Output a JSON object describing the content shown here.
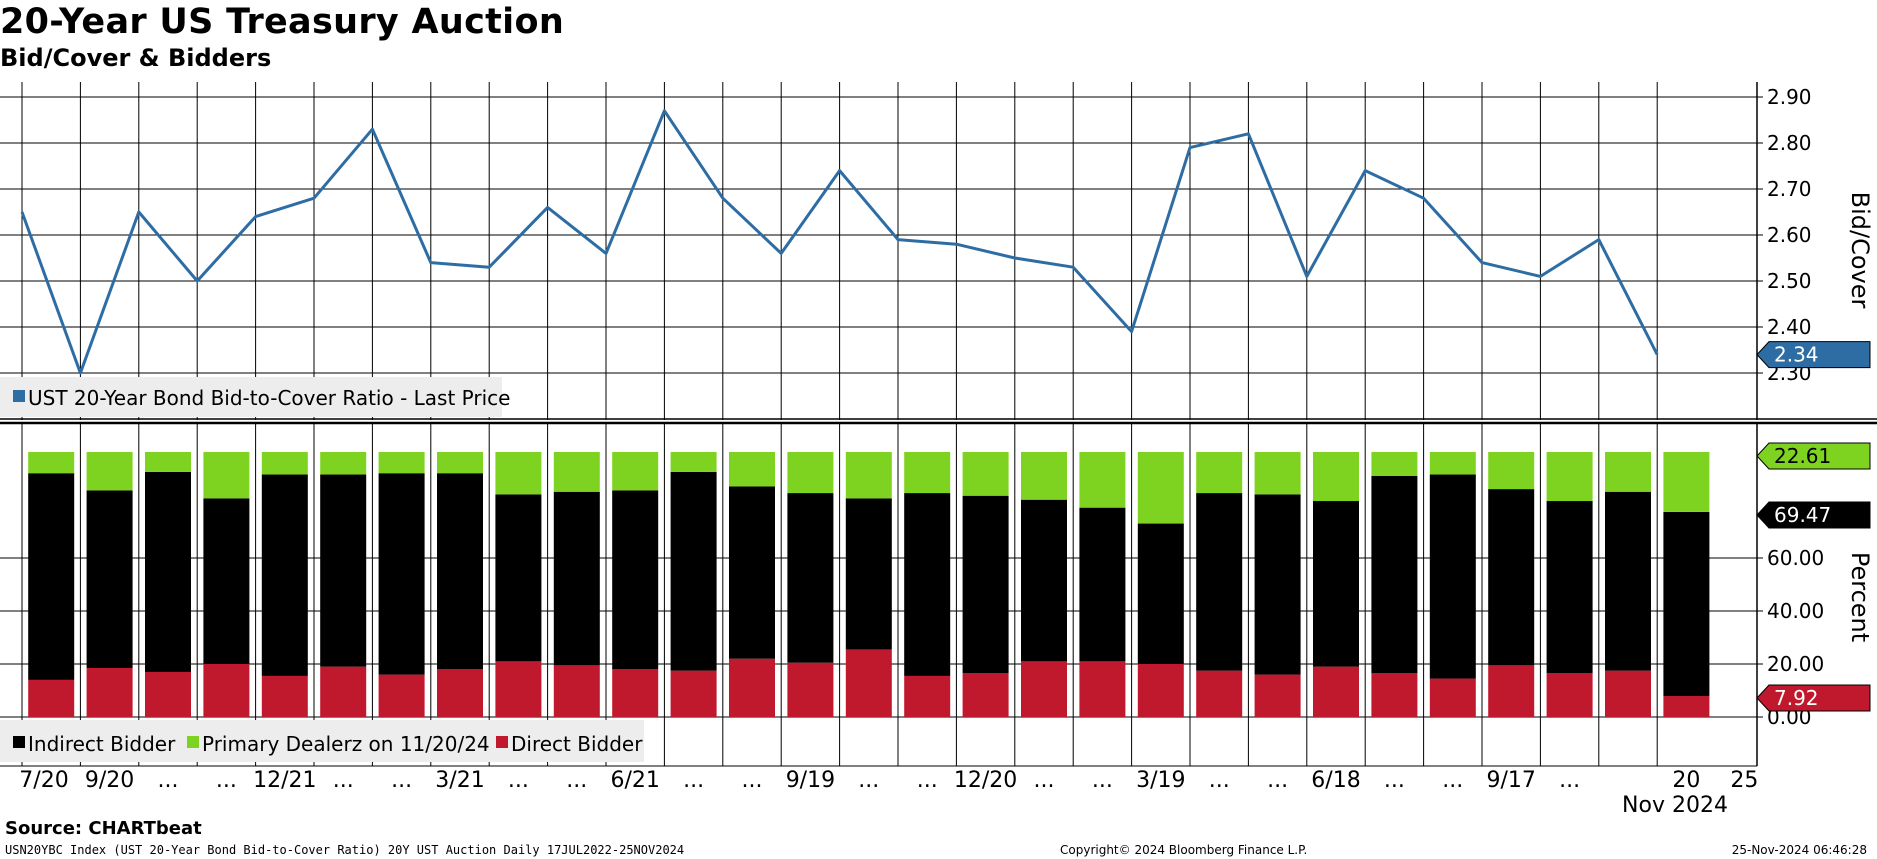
{
  "header": {
    "title": "20-Year US Treasury Auction",
    "subtitle": "Bid/Cover & Bidders"
  },
  "footer": {
    "source": "Source: CHARTbeat",
    "index_info": "USN20YBC Index (UST 20-Year Bond Bid-to-Cover Ratio) 20Y UST Auction  Daily 17JUL2022-25NOV2024",
    "copyright": "Copyright© 2024 Bloomberg Finance L.P.",
    "timestamp": "25-Nov-2024 06:46:28"
  },
  "colors": {
    "line": "#2e6da4",
    "indirect": "#000000",
    "primary": "#7ed321",
    "direct": "#c0182c",
    "grid": "#000000"
  },
  "chart_data": [
    {
      "type": "line",
      "series": [
        {
          "name": "UST 20-Year Bond Bid-to-Cover Ratio - Last Price",
          "values": [
            2.65,
            2.3,
            2.65,
            2.5,
            2.64,
            2.68,
            2.83,
            2.54,
            2.53,
            2.66,
            2.56,
            2.87,
            2.68,
            2.56,
            2.74,
            2.59,
            2.58,
            2.55,
            2.53,
            2.39,
            2.79,
            2.82,
            2.51,
            2.74,
            2.68,
            2.54,
            2.51,
            2.59,
            2.34
          ]
        }
      ],
      "ylabel": "Bid/Cover",
      "ylim": [
        2.27,
        2.93
      ],
      "yticks": [
        "2.30",
        "2.40",
        "2.50",
        "2.60",
        "2.70",
        "2.80",
        "2.90"
      ],
      "last_value_label": "2.34",
      "legend": "UST 20-Year Bond Bid-to-Cover Ratio - Last Price"
    },
    {
      "type": "bar",
      "stacked": true,
      "series": [
        {
          "name": "Direct Bidder",
          "values": [
            14,
            18.5,
            17,
            20,
            15.5,
            19,
            16,
            18,
            21,
            19.5,
            18,
            17.5,
            22,
            20.5,
            25.5,
            15.5,
            16.5,
            21,
            21,
            20,
            17.5,
            16,
            19,
            16.5,
            14.5,
            19.5,
            16.5,
            17.5,
            7.92
          ]
        },
        {
          "name": "Indirect Bidder",
          "values": [
            78,
            67,
            75.5,
            62.5,
            76,
            72.5,
            76,
            74,
            63,
            65.5,
            67.5,
            75,
            65,
            64,
            57,
            69,
            67,
            61,
            58,
            53,
            67,
            68,
            62.5,
            74.5,
            77,
            66.5,
            65,
            67.5,
            69.47
          ]
        },
        {
          "name": "Primary Dealerz on 11/20/24",
          "values": [
            8,
            14.5,
            7.5,
            17.5,
            8.5,
            8.5,
            8,
            8,
            16,
            15,
            14.5,
            7.5,
            13,
            15.5,
            17.5,
            15.5,
            16.5,
            18,
            21,
            27,
            15.5,
            16,
            18.5,
            9,
            8.5,
            14,
            18.5,
            15,
            22.61
          ]
        }
      ],
      "ylabel": "Percent",
      "ylim": [
        -18,
        100
      ],
      "yticks": [
        "0.00",
        "20.00",
        "40.00",
        "60.00"
      ],
      "last_value_labels": {
        "primary": "22.61",
        "indirect": "69.47",
        "direct": "7.92"
      },
      "legend": [
        "Indirect Bidder",
        "Primary Dealerz on 11/20/24",
        "Direct Bidder"
      ]
    }
  ],
  "x_axis": {
    "labels": [
      "7/20",
      "9/20",
      "...",
      "...",
      "12/21",
      "...",
      "...",
      "3/21",
      "...",
      "...",
      "6/21",
      "...",
      "...",
      "9/19",
      "...",
      "...",
      "12/20",
      "...",
      "...",
      "3/19",
      "...",
      "...",
      "6/18",
      "...",
      "...",
      "9/17",
      "...",
      "20",
      "25"
    ],
    "sub_label": "Nov 2024"
  }
}
